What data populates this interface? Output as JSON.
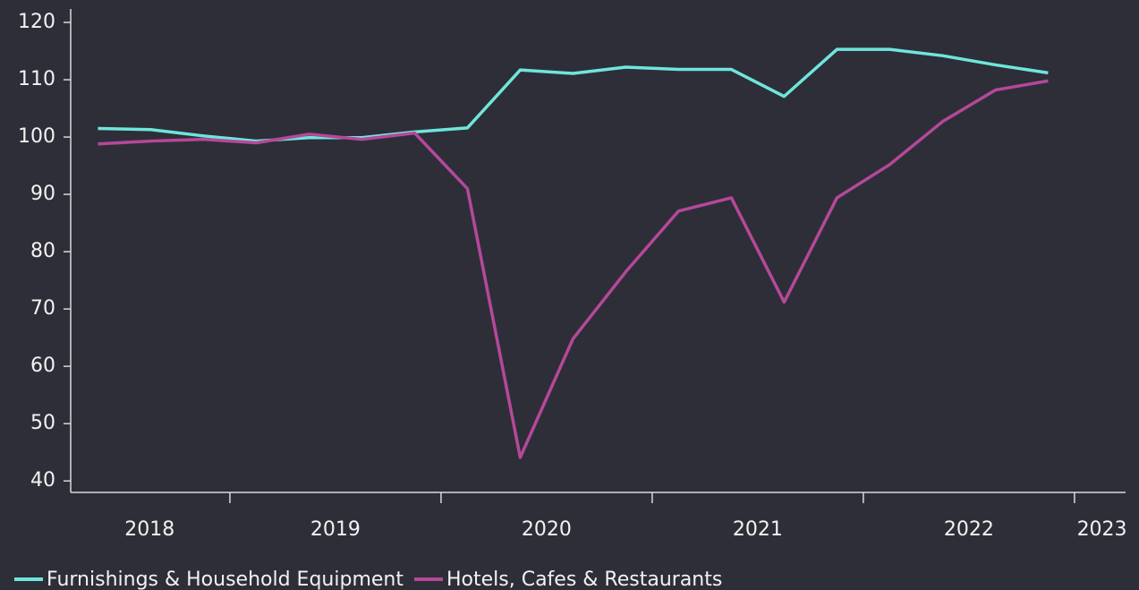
{
  "chart_data": {
    "type": "line",
    "x": [
      2018.375,
      2018.625,
      2018.875,
      2019.125,
      2019.375,
      2019.625,
      2019.875,
      2020.125,
      2020.375,
      2020.625,
      2020.875,
      2021.125,
      2021.375,
      2021.625,
      2021.875,
      2022.125,
      2022.375,
      2022.625,
      2022.875
    ],
    "series": [
      {
        "name": "Furnishings & Household Equipment",
        "color": "#6ee6dc",
        "values": [
          101.5,
          101.3,
          100.2,
          99.3,
          99.9,
          99.9,
          100.9,
          101.6,
          111.7,
          111.1,
          112.2,
          111.8,
          111.8,
          107.1,
          115.3,
          115.3,
          114.2,
          112.6,
          111.2
        ]
      },
      {
        "name": "Hotels, Cafes & Restaurants",
        "color": "#b5489a",
        "values": [
          98.8,
          99.3,
          99.6,
          99.0,
          100.5,
          99.6,
          100.7,
          91.0,
          44.1,
          64.8,
          76.5,
          87.1,
          89.4,
          71.2,
          89.4,
          95.2,
          102.7,
          108.2,
          109.8
        ]
      }
    ],
    "xlim": [
      2018.246,
      2023.242
    ],
    "xticks": [
      2019,
      2020,
      2021,
      2022,
      2023
    ],
    "xtick_labels": [
      {
        "value": 2018.62,
        "label": "2018"
      },
      {
        "value": 2019.5,
        "label": "2019"
      },
      {
        "value": 2020.5,
        "label": "2020"
      },
      {
        "value": 2021.5,
        "label": "2021"
      },
      {
        "value": 2022.5,
        "label": "2022"
      },
      {
        "value": 2023.13,
        "label": "2023"
      }
    ],
    "ylim": [
      38,
      122.35
    ],
    "yticks": [
      40,
      50,
      60,
      70,
      80,
      90,
      100,
      110,
      120
    ],
    "legend": "bottom-left"
  }
}
